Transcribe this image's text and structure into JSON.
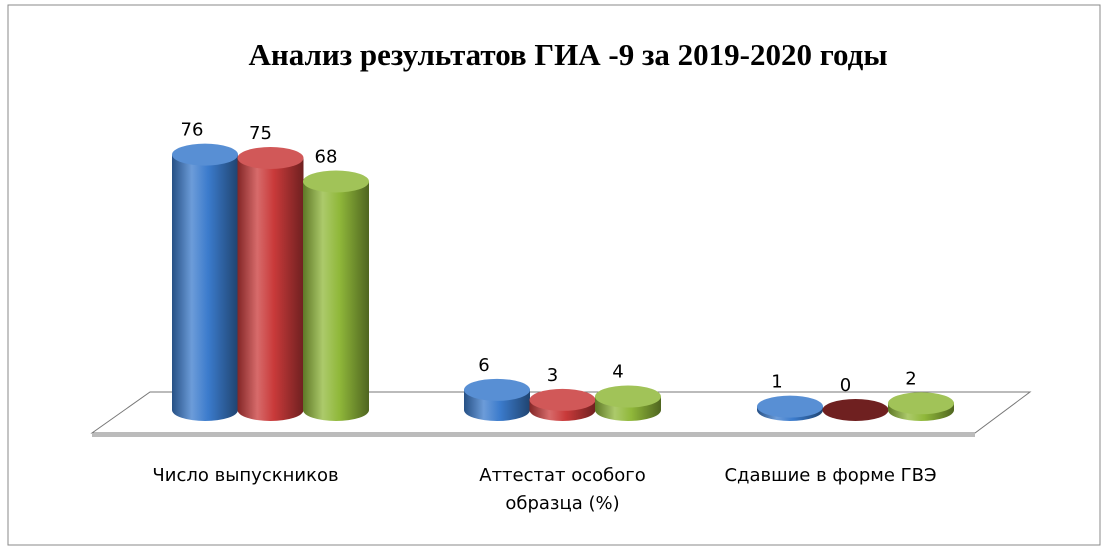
{
  "chart_data": {
    "type": "bar3d",
    "title": "Анализ результатов  ГИА -9  за 2019-2020 годы",
    "categories": [
      "Число выпускников",
      "Аттестат особого образца (%)",
      "Сдавшие в форме ГВЭ"
    ],
    "series": [
      {
        "color": "#3b7bcc",
        "values": [
          76,
          6,
          1
        ]
      },
      {
        "color": "#c93a3a",
        "values": [
          75,
          3,
          0
        ]
      },
      {
        "color": "#90b83a",
        "values": [
          68,
          4,
          2
        ]
      }
    ]
  }
}
